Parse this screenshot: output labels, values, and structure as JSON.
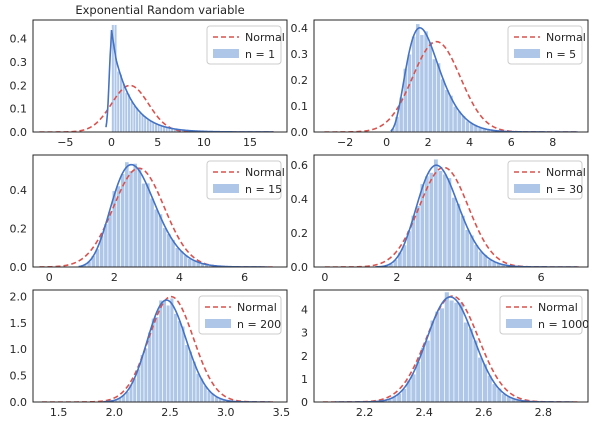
{
  "colors": {
    "hist_fill": "#aec7e8",
    "kde_line": "#4472c4",
    "normal_line": "#d9534f",
    "axes_edge": "#262626",
    "legend_edge": "#cccccc"
  },
  "legend_labels": {
    "normal": "Normal"
  },
  "chart_data": [
    {
      "type": "histogram",
      "title": "Exponential Random variable",
      "legend": "n = 1",
      "legend_position": "top-right",
      "grid": false,
      "xlim": [
        -8.5,
        19
      ],
      "ylim": [
        0,
        0.48
      ],
      "xticks": [
        -5,
        0,
        5,
        10,
        15
      ],
      "xtick_labels": [
        "−5",
        "0",
        "5",
        "10",
        "15"
      ],
      "yticks": [
        0,
        0.1,
        0.2,
        0.3,
        0.4
      ],
      "ytick_labels": [
        "0.0",
        "0.1",
        "0.2",
        "0.3",
        "0.4"
      ],
      "sample": {
        "dist": "exponential",
        "n": 1,
        "mean": 2.0,
        "support": [
          0,
          17.5
        ]
      },
      "normal": {
        "mean": 2.0,
        "sd": 2.0,
        "range": [
          -7.8,
          17.6
        ]
      },
      "peak": 0.39,
      "hist_bins": 60
    },
    {
      "type": "histogram",
      "title": "",
      "legend": "n = 5",
      "legend_position": "top-right",
      "grid": false,
      "xlim": [
        -3.5,
        9.7
      ],
      "ylim": [
        0,
        0.43
      ],
      "xticks": [
        -2,
        0,
        2,
        4,
        6,
        8
      ],
      "xtick_labels": [
        "−2",
        "0",
        "2",
        "4",
        "6",
        "8"
      ],
      "yticks": [
        0,
        0.1,
        0.2,
        0.3,
        0.4
      ],
      "ytick_labels": [
        "0.0",
        "0.1",
        "0.2",
        "0.3",
        "0.4"
      ],
      "sample": {
        "dist": "gamma",
        "n": 5,
        "mean": 2.0,
        "support": [
          0.2,
          9.2
        ]
      },
      "normal": {
        "mean": 2.4,
        "sd": 1.15,
        "range": [
          -3.0,
          9.2
        ]
      },
      "peak": 0.4,
      "hist_bins": 45
    },
    {
      "type": "histogram",
      "title": "",
      "legend": "n = 15",
      "legend_position": "top-right",
      "grid": false,
      "xlim": [
        -0.5,
        7.3
      ],
      "ylim": [
        0,
        0.58
      ],
      "xticks": [
        0,
        2,
        4,
        6
      ],
      "xtick_labels": [
        "0",
        "2",
        "4",
        "6"
      ],
      "yticks": [
        0,
        0.2,
        0.4
      ],
      "ytick_labels": [
        "0.0",
        "0.2",
        "0.4"
      ],
      "sample": {
        "dist": "gamma",
        "n": 15,
        "mean": 2.7,
        "support": [
          0.9,
          6.7
        ]
      },
      "normal": {
        "mean": 2.75,
        "sd": 0.78,
        "range": [
          -0.3,
          6.9
        ]
      },
      "peak": 0.53,
      "hist_bins": 45
    },
    {
      "type": "histogram",
      "title": "",
      "legend": "n = 30",
      "legend_position": "top-right",
      "grid": false,
      "xlim": [
        -0.3,
        7.3
      ],
      "ylim": [
        0,
        0.66
      ],
      "xticks": [
        0,
        2,
        4,
        6
      ],
      "xtick_labels": [
        "0",
        "2",
        "4",
        "6"
      ],
      "yticks": [
        0,
        0.2,
        0.4,
        0.6
      ],
      "ytick_labels": [
        "0.0",
        "0.2",
        "0.4",
        "0.6"
      ],
      "sample": {
        "dist": "gamma",
        "n": 30,
        "mean": 3.2,
        "support": [
          1.4,
          7.0
        ]
      },
      "normal": {
        "mean": 3.3,
        "sd": 0.68,
        "range": [
          0.0,
          7.1
        ]
      },
      "peak": 0.6,
      "hist_bins": 45
    },
    {
      "type": "histogram",
      "title": "",
      "legend": "n = 200",
      "legend_position": "top-right",
      "grid": false,
      "xlim": [
        1.27,
        3.55
      ],
      "ylim": [
        0,
        2.12
      ],
      "xticks": [
        1.5,
        2.0,
        2.5,
        3.0,
        3.5
      ],
      "xtick_labels": [
        "1.5",
        "2.0",
        "2.5",
        "3.0",
        "3.5"
      ],
      "yticks": [
        0,
        0.5,
        1.0,
        1.5,
        2.0
      ],
      "ytick_labels": [
        "0.0",
        "0.5",
        "1.0",
        "1.5",
        "2.0"
      ],
      "sample": {
        "dist": "gamma",
        "n": 200,
        "mean": 2.48,
        "support": [
          1.9,
          3.4
        ]
      },
      "normal": {
        "mean": 2.51,
        "sd": 0.2,
        "range": [
          1.35,
          3.45
        ]
      },
      "peak": 1.93,
      "hist_bins": 45
    },
    {
      "type": "histogram",
      "title": "",
      "legend": "n = 1000",
      "legend_position": "top-right",
      "grid": false,
      "xlim": [
        2.03,
        2.95
      ],
      "ylim": [
        0,
        4.85
      ],
      "xticks": [
        2.2,
        2.4,
        2.6,
        2.8
      ],
      "xtick_labels": [
        "2.2",
        "2.4",
        "2.6",
        "2.8"
      ],
      "yticks": [
        0,
        1,
        2,
        3,
        4
      ],
      "ytick_labels": [
        "0",
        "1",
        "2",
        "3",
        "4"
      ],
      "sample": {
        "dist": "gamma",
        "n": 1000,
        "mean": 2.49,
        "support": [
          2.1,
          2.9
        ]
      },
      "normal": {
        "mean": 2.495,
        "sd": 0.087,
        "range": [
          2.06,
          2.92
        ]
      },
      "peak": 4.55,
      "hist_bins": 50
    }
  ]
}
